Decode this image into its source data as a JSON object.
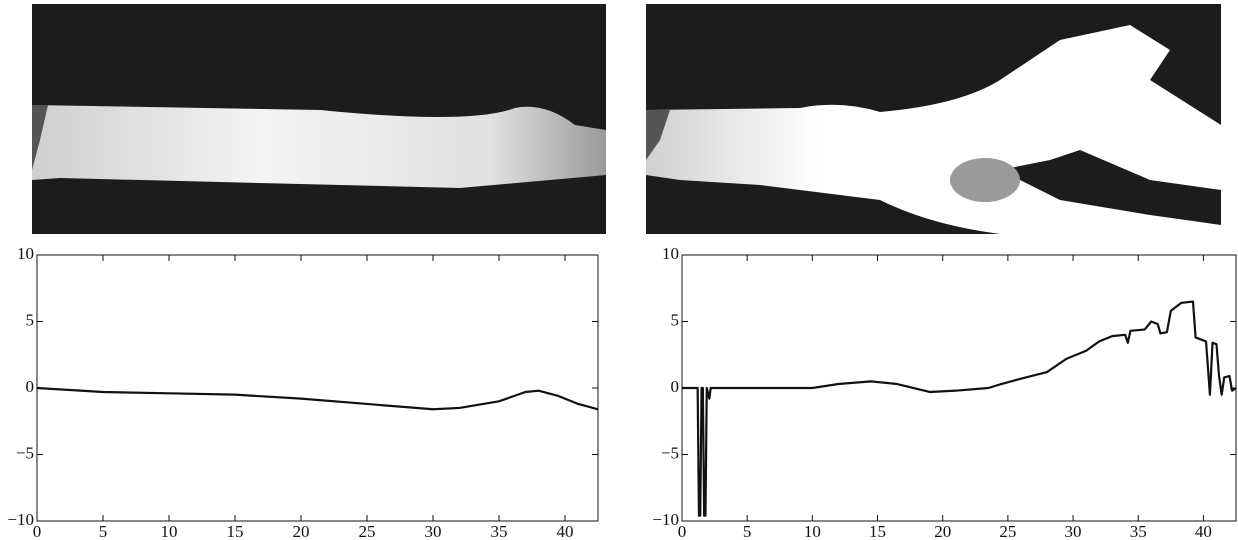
{
  "chart_data": [
    {
      "type": "line",
      "x": [
        0,
        5,
        10,
        15,
        20,
        25,
        30,
        32,
        35,
        37,
        38,
        39.5,
        41,
        42.5
      ],
      "series": [
        {
          "color": "#111111",
          "values": [
            0,
            -0.3,
            -0.4,
            -0.5,
            -0.8,
            -1.2,
            -1.6,
            -1.5,
            -1.0,
            -0.3,
            -0.2,
            -0.6,
            -1.2,
            -1.6
          ]
        }
      ],
      "xlim": [
        0,
        42.5
      ],
      "ylim": [
        -10,
        10
      ],
      "xticks": [
        0,
        5,
        10,
        15,
        20,
        25,
        30,
        35,
        40
      ],
      "yticks": [
        {
          "value": -10,
          "label": "−10"
        },
        {
          "value": -5,
          "label": "−5"
        },
        0,
        5,
        10
      ]
    },
    {
      "type": "line",
      "x": [
        0,
        1.2,
        1.3,
        1.4,
        1.5,
        1.6,
        1.7,
        1.8,
        1.9,
        2.1,
        2.2,
        5,
        10,
        12,
        14.5,
        16.5,
        19,
        21,
        23.5,
        24.5,
        26,
        28,
        29.5,
        31,
        32,
        33,
        34,
        34.2,
        34.4,
        35.5,
        36,
        36.5,
        36.7,
        37.2,
        37.5,
        38.3,
        39.2,
        39.4,
        40.2,
        40.5,
        40.7,
        41,
        41.2,
        41.4,
        41.6,
        42,
        42.2,
        42.5
      ],
      "series": [
        {
          "color": "#111111",
          "values": [
            0,
            0,
            -9.6,
            -9.6,
            0,
            0,
            -9.6,
            -9.6,
            0,
            -0.8,
            0,
            0,
            0,
            0.3,
            0.5,
            0.3,
            -0.3,
            -0.2,
            0,
            0.3,
            0.7,
            1.2,
            2.2,
            2.8,
            3.5,
            3.9,
            4.0,
            3.4,
            4.3,
            4.4,
            5.0,
            4.8,
            4.1,
            4.2,
            5.8,
            6.4,
            6.5,
            3.8,
            3.5,
            -0.5,
            3.4,
            3.3,
            0.9,
            -0.5,
            0.8,
            0.9,
            -0.2,
            0
          ]
        }
      ],
      "xlim": [
        0,
        42.5
      ],
      "ylim": [
        -10,
        10
      ],
      "xticks": [
        0,
        5,
        10,
        15,
        20,
        25,
        30,
        35,
        40
      ],
      "yticks": [
        {
          "value": -10,
          "label": "−10"
        },
        {
          "value": -5,
          "label": "−5"
        },
        0,
        5,
        10
      ]
    }
  ]
}
